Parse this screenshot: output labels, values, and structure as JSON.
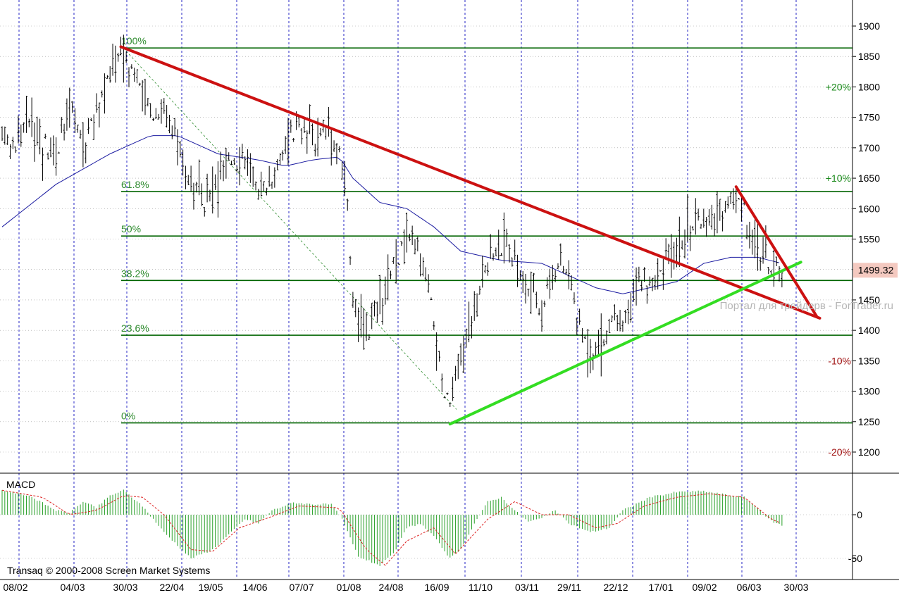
{
  "colors": {
    "background": "#ffffff",
    "bars": "#000000",
    "moving_average": "#1a1aa0",
    "fib_levels": "#006400",
    "fib_labels": "#2e8b2e",
    "resistance_line": "#cc1111",
    "support_line": "#33dd22",
    "grid_dotted": "#1010c0",
    "macd_hist": "#2aa02a",
    "macd_signal": "#dd2222",
    "pct_up": "#1a8a1a",
    "pct_down": "#a01010",
    "price_badge": "#f4c9c0"
  },
  "chart_data": [
    {
      "type": "ohlc_bar",
      "indicators": [
        "moving_average",
        "fibonacci_retracement",
        "trendlines"
      ],
      "ylim": [
        1170,
        1925
      ],
      "y_ticks": [
        1200,
        1250,
        1300,
        1350,
        1400,
        1450,
        1500,
        1550,
        1600,
        1650,
        1700,
        1750,
        1800,
        1850,
        1900
      ],
      "x_tick_labels": [
        "08/02",
        "04/03",
        "30/03",
        "22/04",
        "19/05",
        "14/06",
        "07/07",
        "01/08",
        "24/08",
        "16/09",
        "11/10",
        "03/11",
        "29/11",
        "22/12",
        "17/01",
        "09/02",
        "06/03",
        "30/03"
      ],
      "last_price": "1499.32",
      "fib_levels": [
        {
          "label": "100%",
          "value": 1864
        },
        {
          "label": "61.8%",
          "value": 1628
        },
        {
          "label": "50%",
          "value": 1555
        },
        {
          "label": "38.2%",
          "value": 1482
        },
        {
          "label": "23.6%",
          "value": 1392
        },
        {
          "label": "0%",
          "value": 1248
        }
      ],
      "pct_markers": [
        {
          "label": "+20%",
          "value": 1800,
          "tone": "up"
        },
        {
          "label": "+10%",
          "value": 1650,
          "tone": "up"
        },
        {
          "label": "-10%",
          "value": 1350,
          "tone": "down"
        },
        {
          "label": "-20%",
          "value": 1200,
          "tone": "down"
        }
      ],
      "trendlines": [
        {
          "kind": "resistance",
          "from": {
            "bar": 44,
            "value": 1866
          },
          "to": {
            "bar": 303,
            "value": 1420
          }
        },
        {
          "kind": "support",
          "from": {
            "bar": 166,
            "value": 1246
          },
          "to": {
            "bar": 296,
            "value": 1512
          }
        },
        {
          "kind": "resistance",
          "from": {
            "bar": 272,
            "value": 1636
          },
          "to": {
            "bar": 302,
            "value": 1422
          }
        }
      ],
      "price_path": [
        [
          0,
          1720
        ],
        [
          5,
          1705
        ],
        [
          10,
          1750
        ],
        [
          15,
          1710
        ],
        [
          20,
          1690
        ],
        [
          25,
          1770
        ],
        [
          30,
          1700
        ],
        [
          38,
          1800
        ],
        [
          44,
          1864
        ],
        [
          50,
          1815
        ],
        [
          55,
          1760
        ],
        [
          60,
          1770
        ],
        [
          65,
          1700
        ],
        [
          70,
          1650
        ],
        [
          75,
          1610
        ],
        [
          80,
          1640
        ],
        [
          85,
          1680
        ],
        [
          90,
          1690
        ],
        [
          95,
          1630
        ],
        [
          100,
          1650
        ],
        [
          105,
          1710
        ],
        [
          110,
          1730
        ],
        [
          115,
          1710
        ],
        [
          120,
          1730
        ],
        [
          125,
          1700
        ],
        [
          128,
          1600
        ],
        [
          130,
          1450
        ],
        [
          135,
          1390
        ],
        [
          140,
          1450
        ],
        [
          145,
          1500
        ],
        [
          150,
          1550
        ],
        [
          155,
          1520
        ],
        [
          160,
          1420
        ],
        [
          163,
          1300
        ],
        [
          166,
          1280
        ],
        [
          170,
          1350
        ],
        [
          175,
          1430
        ],
        [
          180,
          1520
        ],
        [
          185,
          1540
        ],
        [
          190,
          1510
        ],
        [
          195,
          1470
        ],
        [
          200,
          1440
        ],
        [
          205,
          1510
        ],
        [
          210,
          1490
        ],
        [
          215,
          1390
        ],
        [
          220,
          1370
        ],
        [
          225,
          1400
        ],
        [
          230,
          1410
        ],
        [
          235,
          1470
        ],
        [
          240,
          1480
        ],
        [
          245,
          1500
        ],
        [
          250,
          1550
        ],
        [
          255,
          1570
        ],
        [
          260,
          1580
        ],
        [
          265,
          1590
        ],
        [
          270,
          1615
        ],
        [
          273,
          1625
        ],
        [
          278,
          1550
        ],
        [
          283,
          1520
        ],
        [
          286,
          1505
        ],
        [
          289,
          1500
        ]
      ],
      "ma_path": [
        [
          0,
          1570
        ],
        [
          20,
          1640
        ],
        [
          40,
          1690
        ],
        [
          55,
          1720
        ],
        [
          65,
          1720
        ],
        [
          80,
          1690
        ],
        [
          95,
          1680
        ],
        [
          105,
          1670
        ],
        [
          115,
          1680
        ],
        [
          125,
          1685
        ],
        [
          130,
          1650
        ],
        [
          140,
          1610
        ],
        [
          150,
          1600
        ],
        [
          160,
          1570
        ],
        [
          170,
          1530
        ],
        [
          185,
          1515
        ],
        [
          200,
          1510
        ],
        [
          210,
          1490
        ],
        [
          220,
          1470
        ],
        [
          230,
          1460
        ],
        [
          240,
          1470
        ],
        [
          250,
          1480
        ],
        [
          260,
          1510
        ],
        [
          270,
          1520
        ],
        [
          280,
          1520
        ],
        [
          289,
          1510
        ]
      ],
      "watermark": "Портал для трейдерв - ForTrader.ru"
    },
    {
      "type": "macd",
      "title": "MACD",
      "ylim": [
        -75,
        42
      ],
      "y_ticks": [
        0,
        -50
      ],
      "hist_path": [
        [
          0,
          28
        ],
        [
          10,
          22
        ],
        [
          20,
          5
        ],
        [
          25,
          2
        ],
        [
          30,
          15
        ],
        [
          35,
          8
        ],
        [
          40,
          22
        ],
        [
          45,
          28
        ],
        [
          52,
          10
        ],
        [
          60,
          -20
        ],
        [
          70,
          -50
        ],
        [
          78,
          -40
        ],
        [
          85,
          -20
        ],
        [
          90,
          -5
        ],
        [
          95,
          -10
        ],
        [
          100,
          5
        ],
        [
          108,
          14
        ],
        [
          115,
          12
        ],
        [
          122,
          12
        ],
        [
          126,
          -5
        ],
        [
          132,
          -48
        ],
        [
          140,
          -58
        ],
        [
          145,
          -45
        ],
        [
          150,
          -15
        ],
        [
          155,
          -10
        ],
        [
          160,
          -25
        ],
        [
          166,
          -50
        ],
        [
          170,
          -40
        ],
        [
          175,
          -10
        ],
        [
          180,
          15
        ],
        [
          185,
          20
        ],
        [
          190,
          5
        ],
        [
          195,
          -8
        ],
        [
          200,
          -4
        ],
        [
          205,
          5
        ],
        [
          210,
          -10
        ],
        [
          218,
          -20
        ],
        [
          225,
          -15
        ],
        [
          230,
          5
        ],
        [
          240,
          20
        ],
        [
          250,
          26
        ],
        [
          260,
          27
        ],
        [
          270,
          22
        ],
        [
          275,
          20
        ],
        [
          280,
          8
        ],
        [
          284,
          -5
        ],
        [
          287,
          -10
        ],
        [
          289,
          -12
        ]
      ],
      "signal_path": [
        [
          0,
          28
        ],
        [
          15,
          20
        ],
        [
          25,
          0
        ],
        [
          35,
          5
        ],
        [
          45,
          22
        ],
        [
          52,
          20
        ],
        [
          60,
          0
        ],
        [
          70,
          -40
        ],
        [
          78,
          -42
        ],
        [
          88,
          -15
        ],
        [
          100,
          -2
        ],
        [
          110,
          10
        ],
        [
          125,
          8
        ],
        [
          135,
          -40
        ],
        [
          142,
          -58
        ],
        [
          150,
          -30
        ],
        [
          160,
          -15
        ],
        [
          168,
          -45
        ],
        [
          180,
          -5
        ],
        [
          190,
          15
        ],
        [
          200,
          0
        ],
        [
          210,
          0
        ],
        [
          220,
          -15
        ],
        [
          228,
          -10
        ],
        [
          238,
          10
        ],
        [
          250,
          20
        ],
        [
          262,
          24
        ],
        [
          275,
          20
        ],
        [
          285,
          -5
        ],
        [
          289,
          -10
        ]
      ]
    }
  ],
  "footer": {
    "copyright": "Transaq © 2000-2008 Screen Market Systems"
  }
}
